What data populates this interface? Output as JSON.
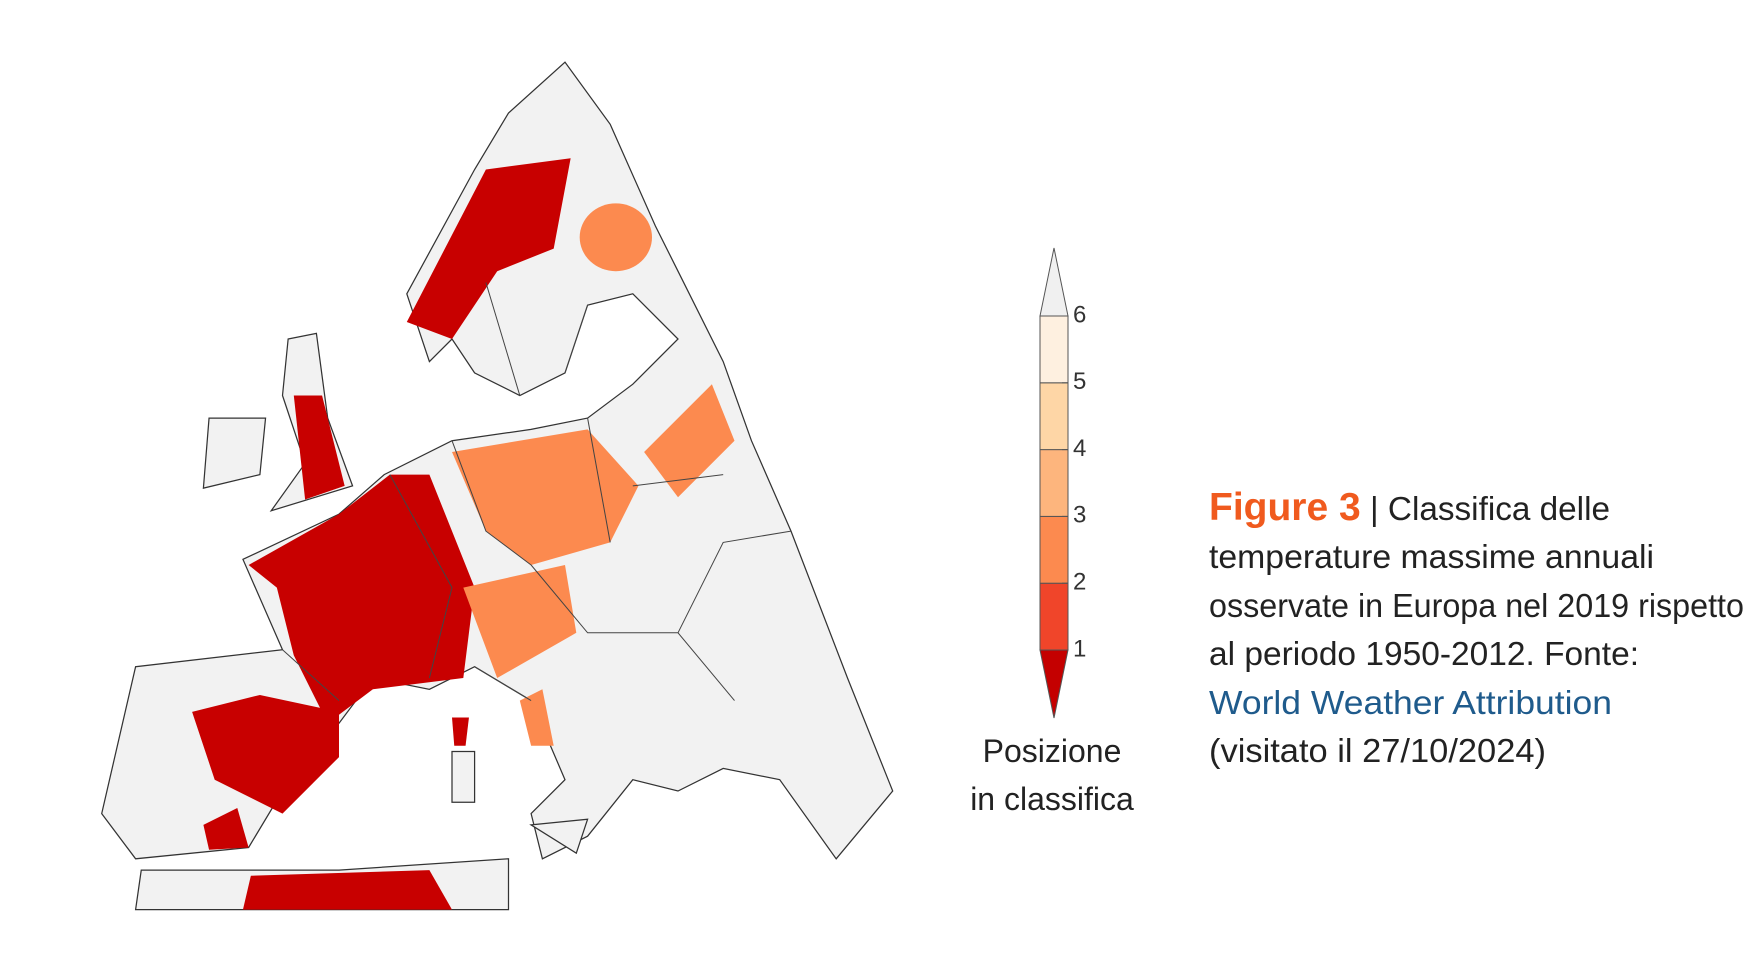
{
  "colorbar": {
    "ticks": [
      1,
      2,
      3,
      4,
      5,
      6
    ],
    "colors": [
      "#c40000",
      "#f0452a",
      "#fc8a4f",
      "#fdb57d",
      "#fed6a6",
      "#fef0e0",
      "#f0f0f0"
    ],
    "label_lines": [
      "Posizione",
      "in classifica"
    ]
  },
  "caption": {
    "label": "Figure 3",
    "lines": [
      "| Classifica delle",
      "temperature massime annuali",
      "osservate in Europa nel 2019 rispetto",
      "al periodo 1950-2012. Fonte:"
    ],
    "source": "World Weather Attribution",
    "visited": "(visitato il 27/10/2024)"
  }
}
